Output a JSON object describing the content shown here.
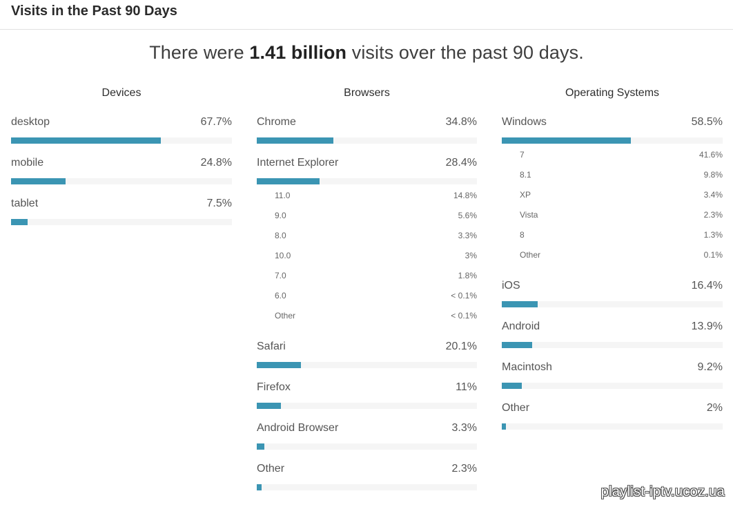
{
  "header": {
    "title": "Visits in the Past 90 Days"
  },
  "summary": {
    "prefix": "There were",
    "highlight": "1.41 billion",
    "suffix": "visits over the past 90 days."
  },
  "colors": {
    "bar": "#3b95b3",
    "track": "#f5f5f5"
  },
  "watermark": "playlist-iptv.ucoz.ua",
  "chart_data": [
    {
      "type": "bar",
      "title": "Devices",
      "items": [
        {
          "label": "desktop",
          "value": 67.7,
          "display": "67.7%"
        },
        {
          "label": "mobile",
          "value": 24.8,
          "display": "24.8%"
        },
        {
          "label": "tablet",
          "value": 7.5,
          "display": "7.5%"
        }
      ]
    },
    {
      "type": "bar",
      "title": "Browsers",
      "items": [
        {
          "label": "Chrome",
          "value": 34.8,
          "display": "34.8%"
        },
        {
          "label": "Internet Explorer",
          "value": 28.4,
          "display": "28.4%",
          "subs": [
            {
              "label": "11.0",
              "display": "14.8%"
            },
            {
              "label": "9.0",
              "display": "5.6%"
            },
            {
              "label": "8.0",
              "display": "3.3%"
            },
            {
              "label": "10.0",
              "display": "3%"
            },
            {
              "label": "7.0",
              "display": "1.8%"
            },
            {
              "label": "6.0",
              "display": "< 0.1%"
            },
            {
              "label": "Other",
              "display": "< 0.1%"
            }
          ]
        },
        {
          "label": "Safari",
          "value": 20.1,
          "display": "20.1%"
        },
        {
          "label": "Firefox",
          "value": 11,
          "display": "11%"
        },
        {
          "label": "Android Browser",
          "value": 3.3,
          "display": "3.3%"
        },
        {
          "label": "Other",
          "value": 2.3,
          "display": "2.3%"
        }
      ]
    },
    {
      "type": "bar",
      "title": "Operating Systems",
      "items": [
        {
          "label": "Windows",
          "value": 58.5,
          "display": "58.5%",
          "subs": [
            {
              "label": "7",
              "display": "41.6%"
            },
            {
              "label": "8.1",
              "display": "9.8%"
            },
            {
              "label": "XP",
              "display": "3.4%"
            },
            {
              "label": "Vista",
              "display": "2.3%"
            },
            {
              "label": "8",
              "display": "1.3%"
            },
            {
              "label": "Other",
              "display": "0.1%"
            }
          ]
        },
        {
          "label": "iOS",
          "value": 16.4,
          "display": "16.4%"
        },
        {
          "label": "Android",
          "value": 13.9,
          "display": "13.9%"
        },
        {
          "label": "Macintosh",
          "value": 9.2,
          "display": "9.2%"
        },
        {
          "label": "Other",
          "value": 2,
          "display": "2%"
        }
      ]
    }
  ]
}
